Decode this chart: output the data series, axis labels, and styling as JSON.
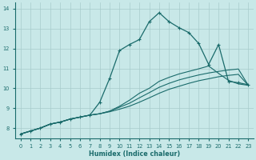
{
  "bg_color": "#c8e8e8",
  "grid_color": "#a8cccc",
  "line_color": "#1a6b6b",
  "xlabel": "Humidex (Indice chaleur)",
  "xlim": [
    -0.5,
    23.5
  ],
  "ylim": [
    7.5,
    14.3
  ],
  "yticks": [
    8,
    9,
    10,
    11,
    12,
    13,
    14
  ],
  "xticks": [
    0,
    1,
    2,
    3,
    4,
    5,
    6,
    7,
    8,
    9,
    10,
    11,
    12,
    13,
    14,
    15,
    16,
    17,
    18,
    19,
    20,
    21,
    22,
    23
  ],
  "line_peak_x": [
    0,
    1,
    2,
    3,
    4,
    5,
    6,
    7,
    8,
    9,
    10,
    11,
    12,
    13,
    14,
    15,
    16,
    17,
    18,
    19,
    20,
    21,
    22,
    23
  ],
  "line_peak_y": [
    7.7,
    7.85,
    8.0,
    8.2,
    8.3,
    8.45,
    8.55,
    8.65,
    9.3,
    10.5,
    11.9,
    12.2,
    12.45,
    13.35,
    13.8,
    13.35,
    13.05,
    12.8,
    12.25,
    11.2,
    12.2,
    10.35,
    10.28,
    10.18
  ],
  "line_a_x": [
    0,
    1,
    2,
    3,
    4,
    5,
    6,
    7,
    8,
    9,
    10,
    11,
    12,
    13,
    14,
    15,
    16,
    17,
    18,
    19,
    20,
    21,
    22,
    23
  ],
  "line_a_y": [
    7.7,
    7.85,
    8.0,
    8.2,
    8.3,
    8.45,
    8.55,
    8.65,
    8.72,
    8.85,
    9.1,
    9.4,
    9.75,
    10.0,
    10.35,
    10.55,
    10.72,
    10.85,
    10.98,
    11.12,
    10.75,
    10.4,
    10.22,
    10.15
  ],
  "line_b_x": [
    0,
    1,
    2,
    3,
    4,
    5,
    6,
    7,
    8,
    9,
    10,
    11,
    12,
    13,
    14,
    15,
    16,
    17,
    18,
    19,
    20,
    21,
    22,
    23
  ],
  "line_b_y": [
    7.7,
    7.85,
    8.0,
    8.2,
    8.3,
    8.45,
    8.55,
    8.65,
    8.72,
    8.85,
    9.05,
    9.25,
    9.52,
    9.78,
    10.05,
    10.25,
    10.42,
    10.55,
    10.67,
    10.77,
    10.85,
    10.92,
    10.97,
    10.15
  ],
  "line_c_x": [
    0,
    1,
    2,
    3,
    4,
    5,
    6,
    7,
    8,
    9,
    10,
    11,
    12,
    13,
    14,
    15,
    16,
    17,
    18,
    19,
    20,
    21,
    22,
    23
  ],
  "line_c_y": [
    7.7,
    7.85,
    8.0,
    8.2,
    8.3,
    8.45,
    8.55,
    8.65,
    8.72,
    8.82,
    8.95,
    9.1,
    9.3,
    9.52,
    9.75,
    9.95,
    10.1,
    10.25,
    10.38,
    10.48,
    10.58,
    10.65,
    10.7,
    10.15
  ]
}
